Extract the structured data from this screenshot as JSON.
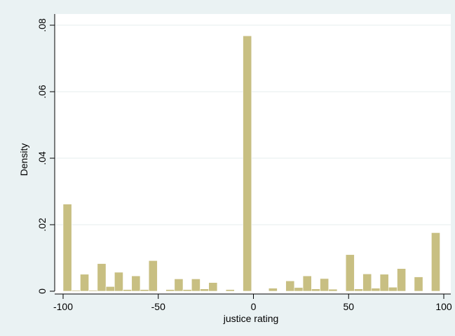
{
  "chart_data": {
    "type": "bar",
    "title": "",
    "xlabel": "justice rating",
    "ylabel": "Density",
    "xlim": [
      -100,
      100
    ],
    "ylim": [
      0,
      0.08
    ],
    "xticks": [
      -100,
      -50,
      0,
      50,
      100
    ],
    "xtick_labels": [
      "-100",
      "-50",
      "0",
      "50",
      "100"
    ],
    "yticks": [
      0,
      0.02,
      0.04,
      0.06,
      0.08
    ],
    "ytick_labels": [
      "0",
      ".02",
      ".04",
      ".06",
      ".08"
    ],
    "grid": "horizontal",
    "legend": "none",
    "colors": {
      "bar_fill": "#c8bf82",
      "bar_edge": "#ffffff",
      "plot_bg": "#ffffff",
      "outer_bg": "#eaf2f3",
      "grid": "#e4ecee"
    },
    "bin_width": 4.5,
    "bins": [
      {
        "x0": -100.0,
        "y": 0.0262
      },
      {
        "x0": -95.5,
        "y": 0.0003
      },
      {
        "x0": -91.0,
        "y": 0.0051
      },
      {
        "x0": -86.5,
        "y": 0.0003
      },
      {
        "x0": -82.0,
        "y": 0.0083
      },
      {
        "x0": -77.5,
        "y": 0.0014
      },
      {
        "x0": -73.0,
        "y": 0.0057
      },
      {
        "x0": -68.5,
        "y": 0.0005
      },
      {
        "x0": -64.0,
        "y": 0.0046
      },
      {
        "x0": -59.5,
        "y": 0.0005
      },
      {
        "x0": -55.0,
        "y": 0.0092
      },
      {
        "x0": -50.5,
        "y": 0.0
      },
      {
        "x0": -46.0,
        "y": 0.0005
      },
      {
        "x0": -41.5,
        "y": 0.0037
      },
      {
        "x0": -37.0,
        "y": 0.0005
      },
      {
        "x0": -32.5,
        "y": 0.0037
      },
      {
        "x0": -28.0,
        "y": 0.0007
      },
      {
        "x0": -23.5,
        "y": 0.0026
      },
      {
        "x0": -19.0,
        "y": 0.0
      },
      {
        "x0": -14.5,
        "y": 0.0005
      },
      {
        "x0": -10.0,
        "y": 0.0
      },
      {
        "x0": -5.5,
        "y": 0.0768
      },
      {
        "x0": -1.0,
        "y": 0.0
      },
      {
        "x0": 3.5,
        "y": 0.0
      },
      {
        "x0": 8.0,
        "y": 0.0009
      },
      {
        "x0": 12.5,
        "y": 0.0
      },
      {
        "x0": 17.0,
        "y": 0.0031
      },
      {
        "x0": 21.5,
        "y": 0.0011
      },
      {
        "x0": 26.0,
        "y": 0.0046
      },
      {
        "x0": 30.5,
        "y": 0.0007
      },
      {
        "x0": 35.0,
        "y": 0.0038
      },
      {
        "x0": 39.5,
        "y": 0.0006
      },
      {
        "x0": 44.0,
        "y": 0.0
      },
      {
        "x0": 48.5,
        "y": 0.011
      },
      {
        "x0": 53.0,
        "y": 0.0007
      },
      {
        "x0": 57.5,
        "y": 0.0052
      },
      {
        "x0": 62.0,
        "y": 0.0009
      },
      {
        "x0": 66.5,
        "y": 0.0051
      },
      {
        "x0": 71.0,
        "y": 0.0012
      },
      {
        "x0": 75.5,
        "y": 0.0068
      },
      {
        "x0": 80.0,
        "y": 0.0
      },
      {
        "x0": 84.5,
        "y": 0.0043
      },
      {
        "x0": 89.0,
        "y": 0.0
      },
      {
        "x0": 93.5,
        "y": 0.0176
      }
    ]
  }
}
